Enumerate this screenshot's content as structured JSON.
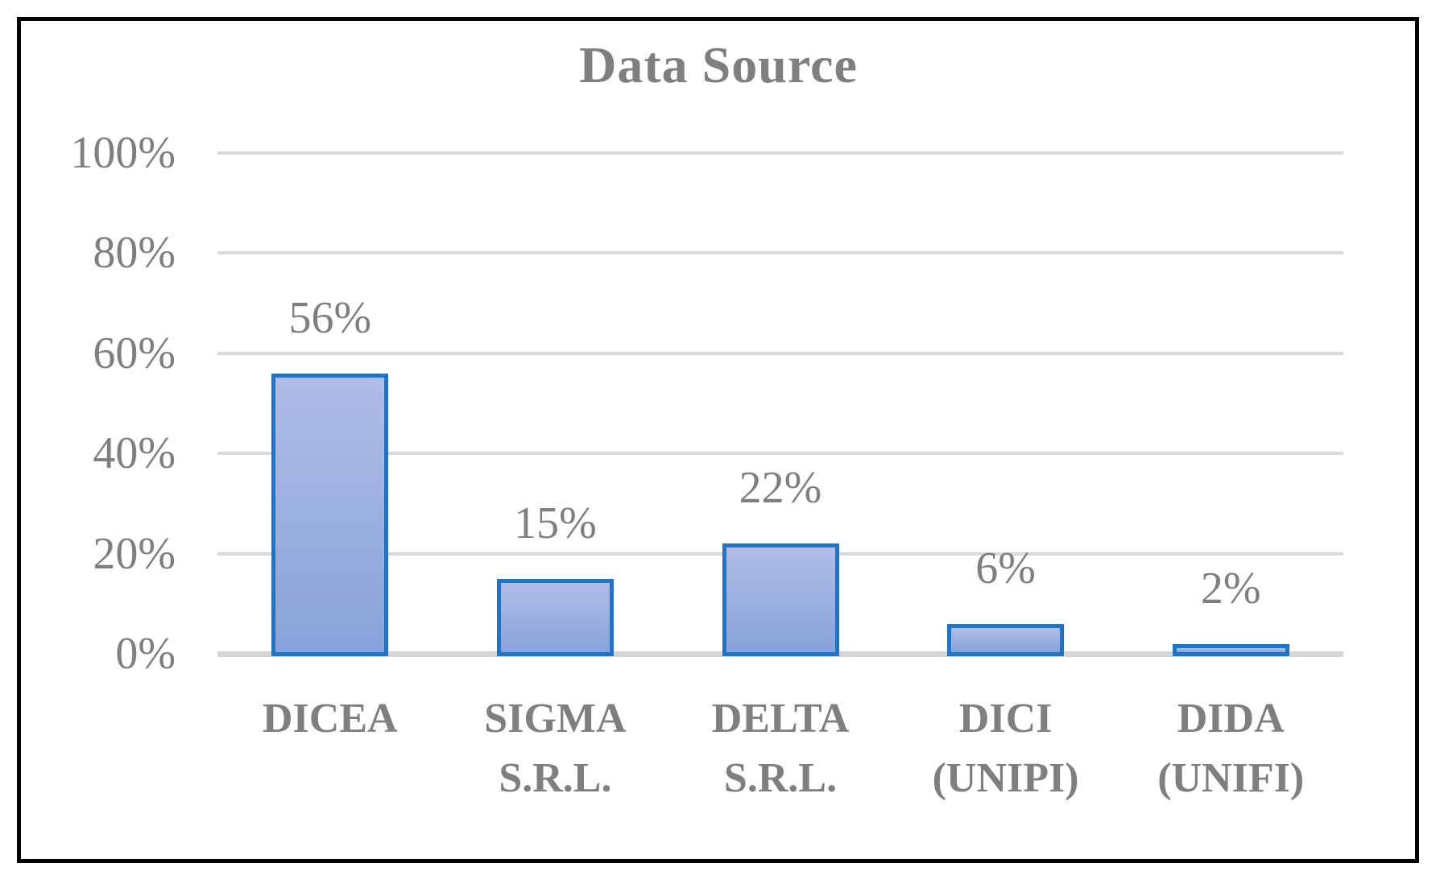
{
  "chart_data": {
    "type": "bar",
    "title": "Data Source",
    "categories": [
      "DICEA",
      "SIGMA S.R.L.",
      "DELTA S.R.L.",
      "DICI (UNIPI)",
      "DIDA (UNIFI)"
    ],
    "category_label_lines": [
      [
        "DICEA"
      ],
      [
        "SIGMA",
        "S.R.L."
      ],
      [
        "DELTA",
        "S.R.L."
      ],
      [
        "DICI",
        "(UNIPI)"
      ],
      [
        "DIDA",
        "(UNIFI)"
      ]
    ],
    "values": [
      56,
      15,
      22,
      6,
      2
    ],
    "data_labels": [
      "56%",
      "15%",
      "22%",
      "6%",
      "2%"
    ],
    "xlabel": "",
    "ylabel": "",
    "ylim": [
      0,
      100
    ],
    "ytick_values": [
      0,
      20,
      40,
      60,
      80,
      100
    ],
    "ytick_labels": [
      "0%",
      "20%",
      "40%",
      "60%",
      "80%",
      "100%"
    ],
    "grid": true,
    "legend": false,
    "colors": {
      "bar_fill_top": "#afbde6",
      "bar_fill_bottom": "#88a3da",
      "bar_border": "#1f74c8",
      "gridline": "#d9d9d9",
      "axis_line": "#d6d6d6",
      "text": "#7f7f7f",
      "frame_border": "#000000",
      "background": "#ffffff"
    }
  }
}
